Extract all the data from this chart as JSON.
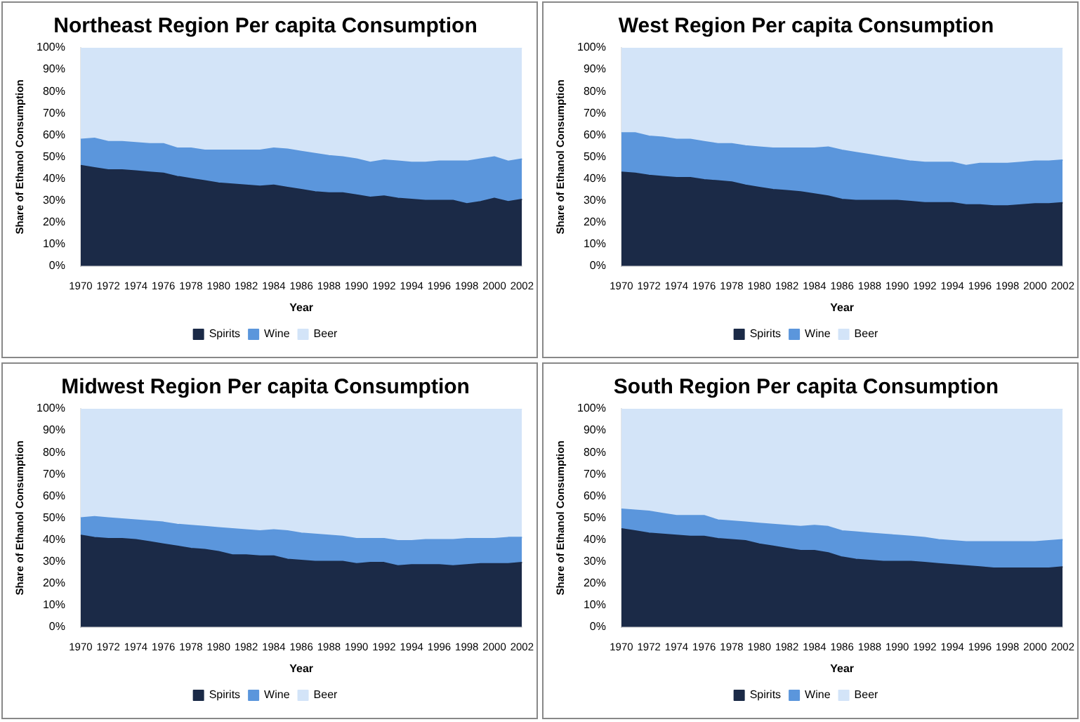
{
  "chart_data": [
    {
      "type": "area",
      "title": "Northeast Region Per capita Consumption",
      "xlabel": "Year",
      "ylabel": "Share of Ethanol Consumption",
      "stacked": true,
      "legend": "bottom",
      "grid": false,
      "categories": [
        "1970",
        null,
        "1972",
        null,
        "1974",
        null,
        "1976",
        null,
        "1978",
        null,
        "1980",
        null,
        "1982",
        null,
        "1984",
        null,
        "1986",
        null,
        "1988",
        null,
        "1990",
        null,
        "1992",
        null,
        "1994",
        null,
        "1996",
        null,
        "1998",
        null,
        "2000",
        null,
        "2002"
      ],
      "ylim": [
        0,
        100
      ],
      "yticks": [
        {
          "value": 0,
          "label": "0%"
        },
        {
          "value": 10,
          "label": "10%"
        },
        {
          "value": 20,
          "label": "20%"
        },
        {
          "value": 30,
          "label": "30%"
        },
        {
          "value": 40,
          "label": "40%"
        },
        {
          "value": 50,
          "label": "50%"
        },
        {
          "value": 60,
          "label": "60%"
        },
        {
          "value": 70,
          "label": "70%"
        },
        {
          "value": 80,
          "label": "80%"
        },
        {
          "value": 90,
          "label": "90%"
        },
        {
          "value": 100,
          "label": "100%"
        }
      ],
      "series": [
        {
          "name": "Spirits",
          "color": "#1b2a47",
          "values": [
            46,
            45,
            44,
            44,
            43.5,
            43,
            42.5,
            41,
            40,
            39,
            38,
            37.5,
            37,
            36.5,
            37,
            36,
            35,
            34,
            33.5,
            33.5,
            32.5,
            31.5,
            32,
            31,
            30.5,
            30,
            30,
            30,
            28.5,
            29.5,
            31,
            29.5,
            30.5
          ]
        },
        {
          "name": "Wine",
          "color": "#5b96dc",
          "values": [
            12,
            13.5,
            13,
            13,
            13,
            13,
            13.5,
            13,
            14,
            14,
            15,
            15.5,
            16,
            16.5,
            17,
            17.5,
            17.5,
            17.5,
            17,
            16.5,
            16.5,
            16,
            16.5,
            17,
            17,
            17.5,
            18,
            18,
            19.5,
            19.5,
            19,
            18.5,
            18.5
          ]
        },
        {
          "name": "Beer",
          "color": "#d3e4f8",
          "values": [
            42,
            41.5,
            43,
            43,
            43.5,
            44,
            44,
            46,
            46,
            47,
            47,
            47,
            47,
            47,
            46,
            46.5,
            47.5,
            48.5,
            49.5,
            50,
            51,
            52.5,
            51.5,
            52,
            52.5,
            52.5,
            52,
            52,
            52,
            51,
            50,
            52,
            51
          ]
        }
      ]
    },
    {
      "type": "area",
      "title": "West Region Per capita Consumption",
      "xlabel": "Year",
      "ylabel": "Share of Ethanol Consumption",
      "stacked": true,
      "legend": "bottom",
      "grid": false,
      "categories": [
        "1970",
        null,
        "1972",
        null,
        "1974",
        null,
        "1976",
        null,
        "1978",
        null,
        "1980",
        null,
        "1982",
        null,
        "1984",
        null,
        "1986",
        null,
        "1988",
        null,
        "1990",
        null,
        "1992",
        null,
        "1994",
        null,
        "1996",
        null,
        "1998",
        null,
        "2000",
        null,
        "2002"
      ],
      "ylim": [
        0,
        100
      ],
      "yticks": [
        {
          "value": 0,
          "label": "0%"
        },
        {
          "value": 10,
          "label": "10%"
        },
        {
          "value": 20,
          "label": "20%"
        },
        {
          "value": 30,
          "label": "30%"
        },
        {
          "value": 40,
          "label": "40%"
        },
        {
          "value": 50,
          "label": "50%"
        },
        {
          "value": 60,
          "label": "60%"
        },
        {
          "value": 70,
          "label": "70%"
        },
        {
          "value": 80,
          "label": "80%"
        },
        {
          "value": 90,
          "label": "90%"
        },
        {
          "value": 100,
          "label": "100%"
        }
      ],
      "series": [
        {
          "name": "Spirits",
          "color": "#1b2a47",
          "values": [
            43,
            42.5,
            41.5,
            41,
            40.5,
            40.5,
            39.5,
            39,
            38.5,
            37,
            36,
            35,
            34.5,
            34,
            33,
            32,
            30.5,
            30,
            30,
            30,
            30,
            29.5,
            29,
            29,
            29,
            28,
            28,
            27.5,
            27.5,
            28,
            28.5,
            28.5,
            29
          ]
        },
        {
          "name": "Wine",
          "color": "#5b96dc",
          "values": [
            18,
            18.5,
            18,
            18,
            17.5,
            17.5,
            17.5,
            17,
            17.5,
            18,
            18.5,
            19,
            19.5,
            20,
            21,
            22.5,
            22.5,
            22,
            21,
            20,
            19,
            18.5,
            18.5,
            18.5,
            18.5,
            18,
            19,
            19.5,
            19.5,
            19.5,
            19.5,
            19.5,
            19.5
          ]
        },
        {
          "name": "Beer",
          "color": "#d3e4f8",
          "values": [
            39,
            39,
            40.5,
            41,
            42,
            42,
            43,
            44,
            44,
            45,
            45.5,
            46,
            46,
            46,
            46,
            45.5,
            47,
            48,
            49,
            50,
            51,
            52,
            52.5,
            52.5,
            52.5,
            54,
            53,
            53,
            53,
            52.5,
            52,
            52,
            51.5
          ]
        }
      ]
    },
    {
      "type": "area",
      "title": "Midwest Region Per capita Consumption",
      "xlabel": "Year",
      "ylabel": "Share of Ethanol Consumption",
      "stacked": true,
      "legend": "bottom",
      "grid": false,
      "categories": [
        "1970",
        null,
        "1972",
        null,
        "1974",
        null,
        "1976",
        null,
        "1978",
        null,
        "1980",
        null,
        "1982",
        null,
        "1984",
        null,
        "1986",
        null,
        "1988",
        null,
        "1990",
        null,
        "1992",
        null,
        "1994",
        null,
        "1996",
        null,
        "1998",
        null,
        "2000",
        null,
        "2002"
      ],
      "ylim": [
        0,
        100
      ],
      "yticks": [
        {
          "value": 0,
          "label": "0%"
        },
        {
          "value": 10,
          "label": "10%"
        },
        {
          "value": 20,
          "label": "20%"
        },
        {
          "value": 30,
          "label": "30%"
        },
        {
          "value": 40,
          "label": "40%"
        },
        {
          "value": 50,
          "label": "50%"
        },
        {
          "value": 60,
          "label": "60%"
        },
        {
          "value": 70,
          "label": "70%"
        },
        {
          "value": 80,
          "label": "80%"
        },
        {
          "value": 90,
          "label": "90%"
        },
        {
          "value": 100,
          "label": "100%"
        }
      ],
      "series": [
        {
          "name": "Spirits",
          "color": "#1b2a47",
          "values": [
            42,
            41,
            40.5,
            40.5,
            40,
            39,
            38,
            37,
            36,
            35.5,
            34.5,
            33,
            33,
            32.5,
            32.5,
            31,
            30.5,
            30,
            30,
            30,
            29,
            29.5,
            29.5,
            28,
            28.5,
            28.5,
            28.5,
            28,
            28.5,
            29,
            29,
            29,
            29.5
          ]
        },
        {
          "name": "Wine",
          "color": "#5b96dc",
          "values": [
            8,
            9.5,
            9.5,
            9,
            9,
            9.5,
            10,
            10,
            10.5,
            10.5,
            11,
            12,
            11.5,
            11.5,
            12,
            13,
            12.5,
            12.5,
            12,
            11.5,
            11.5,
            11,
            11,
            11.5,
            11,
            11.5,
            11.5,
            12,
            12,
            11.5,
            11.5,
            12,
            11.5
          ]
        },
        {
          "name": "Beer",
          "color": "#d3e4f8",
          "values": [
            50,
            49.5,
            50,
            50.5,
            51,
            51.5,
            52,
            53,
            53.5,
            54,
            54.5,
            55,
            55.5,
            56,
            55.5,
            56,
            57,
            57.5,
            58,
            58.5,
            59.5,
            59.5,
            59.5,
            60.5,
            60.5,
            60,
            60,
            60,
            59.5,
            59.5,
            59.5,
            59,
            59
          ]
        }
      ]
    },
    {
      "type": "area",
      "title": "South Region Per capita Consumption",
      "xlabel": "Year",
      "ylabel": "Share of Ethanol Consumption",
      "stacked": true,
      "legend": "bottom",
      "grid": false,
      "categories": [
        "1970",
        null,
        "1972",
        null,
        "1974",
        null,
        "1976",
        null,
        "1978",
        null,
        "1980",
        null,
        "1982",
        null,
        "1984",
        null,
        "1986",
        null,
        "1988",
        null,
        "1990",
        null,
        "1992",
        null,
        "1994",
        null,
        "1996",
        null,
        "1998",
        null,
        "2000",
        null,
        "2002"
      ],
      "ylim": [
        0,
        100
      ],
      "yticks": [
        {
          "value": 0,
          "label": "0%"
        },
        {
          "value": 10,
          "label": "10%"
        },
        {
          "value": 20,
          "label": "20%"
        },
        {
          "value": 30,
          "label": "30%"
        },
        {
          "value": 40,
          "label": "40%"
        },
        {
          "value": 50,
          "label": "50%"
        },
        {
          "value": 60,
          "label": "60%"
        },
        {
          "value": 70,
          "label": "70%"
        },
        {
          "value": 80,
          "label": "80%"
        },
        {
          "value": 90,
          "label": "90%"
        },
        {
          "value": 100,
          "label": "100%"
        }
      ],
      "series": [
        {
          "name": "Spirits",
          "color": "#1b2a47",
          "values": [
            45,
            44,
            43,
            42.5,
            42,
            41.5,
            41.5,
            40.5,
            40,
            39.5,
            38,
            37,
            36,
            35,
            35,
            34,
            32,
            31,
            30.5,
            30,
            30,
            30,
            29.5,
            29,
            28.5,
            28,
            27.5,
            27,
            27,
            27,
            27,
            27,
            27.5
          ]
        },
        {
          "name": "Wine",
          "color": "#5b96dc",
          "values": [
            9,
            9.5,
            10,
            9.5,
            9,
            9.5,
            9.5,
            8.5,
            8.5,
            8.5,
            9.5,
            10,
            10.5,
            11,
            11.5,
            12,
            12,
            12.5,
            12.5,
            12.5,
            12,
            11.5,
            11.5,
            11,
            11,
            11,
            11.5,
            12,
            12,
            12,
            12,
            12.5,
            12.5
          ]
        },
        {
          "name": "Beer",
          "color": "#d3e4f8",
          "values": [
            46,
            46.5,
            47,
            48,
            49,
            49,
            49,
            51,
            51.5,
            52,
            52.5,
            53,
            53.5,
            54,
            53.5,
            54,
            56,
            56.5,
            57,
            57.5,
            58,
            58.5,
            59,
            60,
            60.5,
            61,
            61,
            61,
            61,
            61,
            61,
            60.5,
            60
          ]
        }
      ]
    }
  ]
}
